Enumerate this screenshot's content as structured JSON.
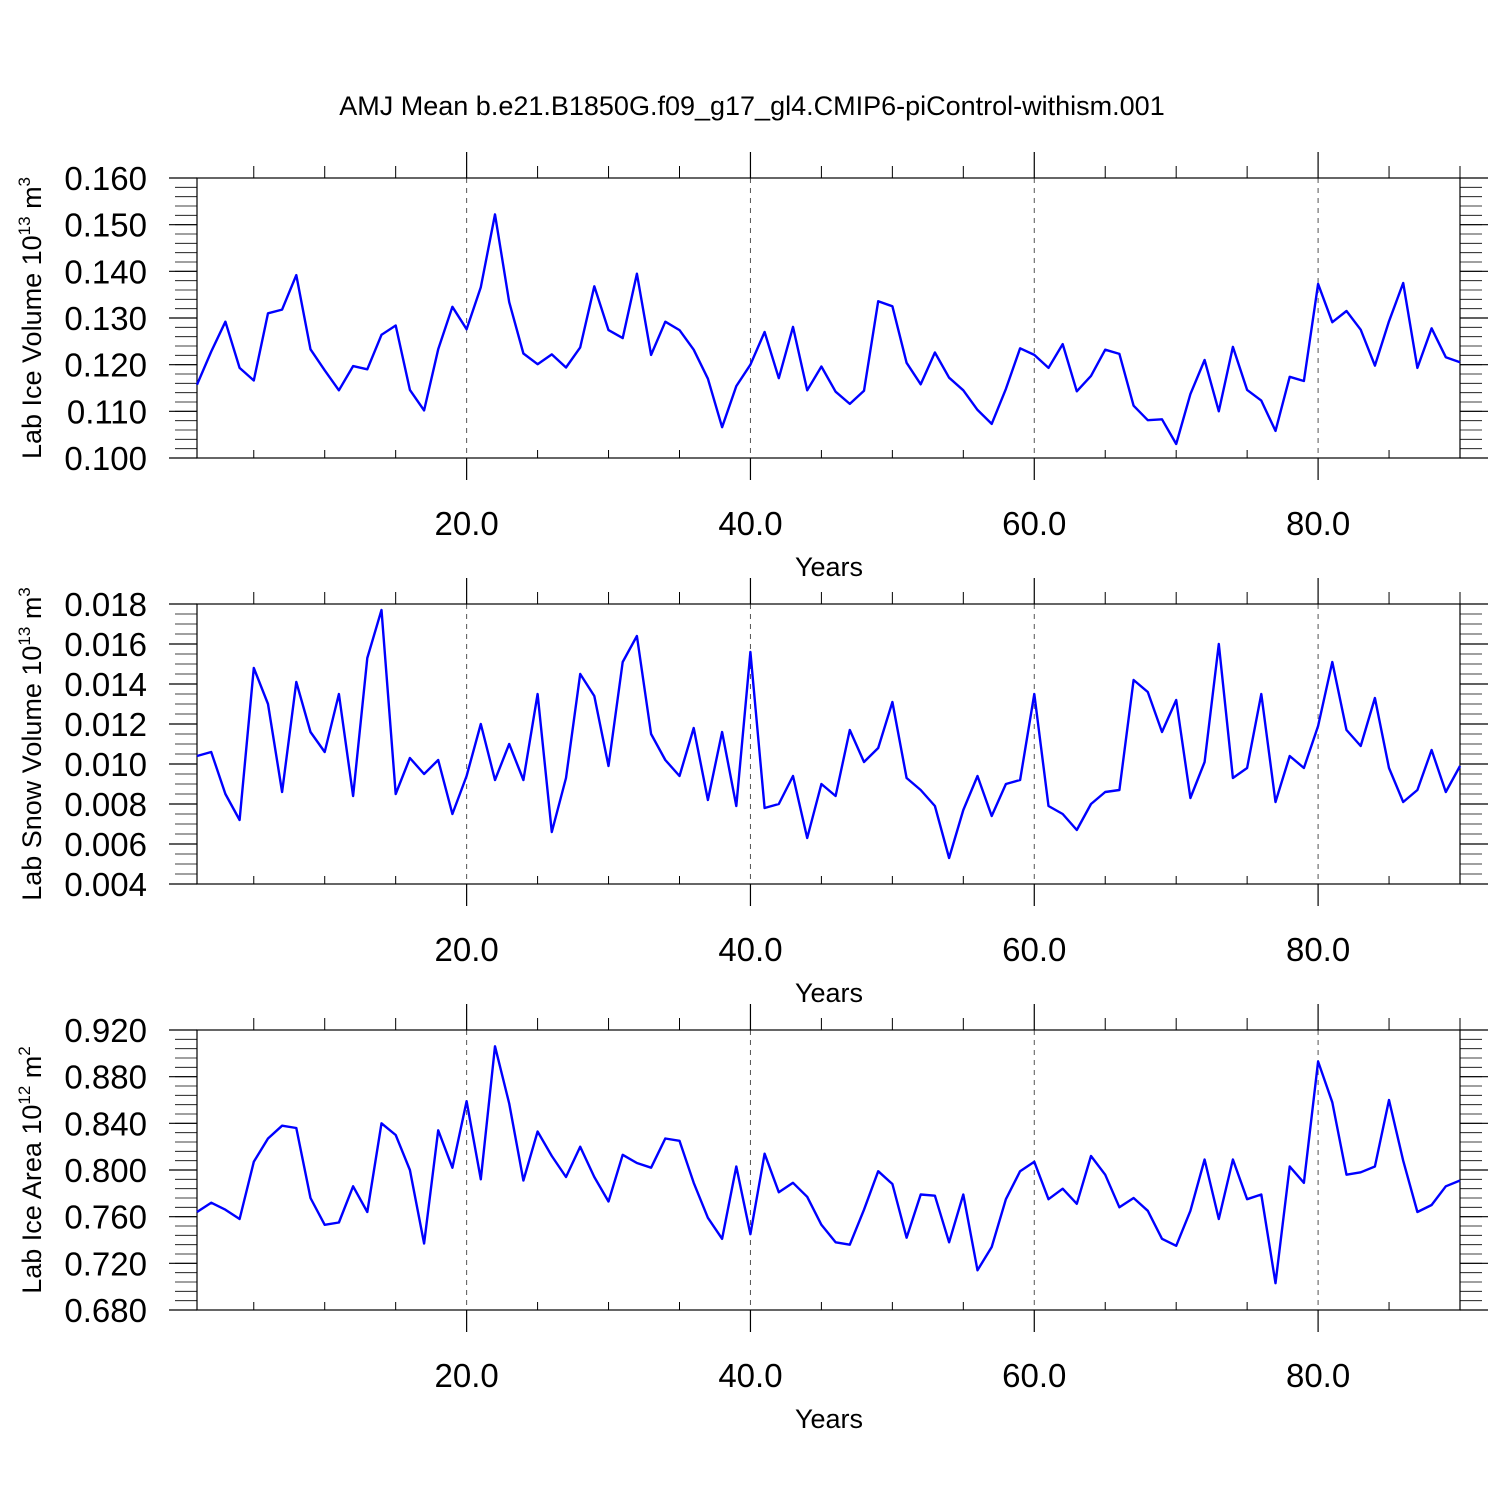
{
  "figure": {
    "title": "AMJ Mean b.e21.B1850G.f09_g17_gl4.CMIP6-piControl-withism.001"
  },
  "chart_data": [
    {
      "type": "line",
      "title": "",
      "xlabel": "Years",
      "ylabel": {
        "text": "Lab Ice Volume 10",
        "sup": "13",
        "unit": " m",
        "unit_sup": "3"
      },
      "xlim": [
        1,
        90
      ],
      "ylim": [
        0.1,
        0.16
      ],
      "xticks": [
        20,
        40,
        60,
        80
      ],
      "xtick_labels": [
        "20.0",
        "40.0",
        "60.0",
        "80.0"
      ],
      "yticks": [
        0.1,
        0.11,
        0.12,
        0.13,
        0.14,
        0.15,
        0.16
      ],
      "ytick_labels": [
        "0.100",
        "0.110",
        "0.120",
        "0.130",
        "0.140",
        "0.150",
        "0.160"
      ],
      "yminor_step": 0.002,
      "grid": "vertical dashed at major x ticks",
      "color": "#0000ff",
      "x": [
        1,
        2,
        3,
        4,
        5,
        6,
        7,
        8,
        9,
        10,
        11,
        12,
        13,
        14,
        15,
        16,
        17,
        18,
        19,
        20,
        21,
        22,
        23,
        24,
        25,
        26,
        27,
        28,
        29,
        30,
        31,
        32,
        33,
        34,
        35,
        36,
        37,
        38,
        39,
        40,
        41,
        42,
        43,
        44,
        45,
        46,
        47,
        48,
        49,
        50,
        51,
        52,
        53,
        54,
        55,
        56,
        57,
        58,
        59,
        60,
        61,
        62,
        63,
        64,
        65,
        66,
        67,
        68,
        69,
        70,
        71,
        72,
        73,
        74,
        75,
        76,
        77,
        78,
        79,
        80,
        81,
        82,
        83,
        84,
        85,
        86,
        87,
        88,
        89,
        90
      ],
      "values": [
        0.1157,
        0.1228,
        0.1292,
        0.1193,
        0.1166,
        0.131,
        0.1318,
        0.1392,
        0.1233,
        0.1188,
        0.1145,
        0.1197,
        0.119,
        0.1264,
        0.1284,
        0.1146,
        0.1102,
        0.1233,
        0.1324,
        0.1276,
        0.1366,
        0.1522,
        0.1334,
        0.1224,
        0.1201,
        0.1222,
        0.1194,
        0.1237,
        0.1368,
        0.1274,
        0.1257,
        0.1395,
        0.1221,
        0.1292,
        0.1274,
        0.1232,
        0.117,
        0.1066,
        0.1154,
        0.12,
        0.127,
        0.1171,
        0.1281,
        0.1145,
        0.1196,
        0.1142,
        0.1116,
        0.1144,
        0.1336,
        0.1325,
        0.1204,
        0.1158,
        0.1226,
        0.1172,
        0.1145,
        0.1103,
        0.1073,
        0.1148,
        0.1235,
        0.1221,
        0.1193,
        0.1244,
        0.1143,
        0.1176,
        0.1232,
        0.1223,
        0.1112,
        0.1081,
        0.1083,
        0.103,
        0.1137,
        0.121,
        0.11,
        0.1238,
        0.1146,
        0.1123,
        0.1058,
        0.1174,
        0.1165,
        0.1373,
        0.1291,
        0.1315,
        0.1275,
        0.1198,
        0.1293,
        0.1375,
        0.1193,
        0.1278,
        0.1216,
        0.1205
      ]
    },
    {
      "type": "line",
      "title": "",
      "xlabel": "Years",
      "ylabel": {
        "text": "Lab Snow Volume 10",
        "sup": "13",
        "unit": " m",
        "unit_sup": "3"
      },
      "xlim": [
        1,
        90
      ],
      "ylim": [
        0.004,
        0.018
      ],
      "xticks": [
        20,
        40,
        60,
        80
      ],
      "xtick_labels": [
        "20.0",
        "40.0",
        "60.0",
        "80.0"
      ],
      "yticks": [
        0.004,
        0.006,
        0.008,
        0.01,
        0.012,
        0.014,
        0.016,
        0.018
      ],
      "ytick_labels": [
        "0.004",
        "0.006",
        "0.008",
        "0.010",
        "0.012",
        "0.014",
        "0.016",
        "0.018"
      ],
      "yminor_step": 0.0005,
      "grid": "vertical dashed at major x ticks",
      "color": "#0000ff",
      "x": [
        1,
        2,
        3,
        4,
        5,
        6,
        7,
        8,
        9,
        10,
        11,
        12,
        13,
        14,
        15,
        16,
        17,
        18,
        19,
        20,
        21,
        22,
        23,
        24,
        25,
        26,
        27,
        28,
        29,
        30,
        31,
        32,
        33,
        34,
        35,
        36,
        37,
        38,
        39,
        40,
        41,
        42,
        43,
        44,
        45,
        46,
        47,
        48,
        49,
        50,
        51,
        52,
        53,
        54,
        55,
        56,
        57,
        58,
        59,
        60,
        61,
        62,
        63,
        64,
        65,
        66,
        67,
        68,
        69,
        70,
        71,
        72,
        73,
        74,
        75,
        76,
        77,
        78,
        79,
        80,
        81,
        82,
        83,
        84,
        85,
        86,
        87,
        88,
        89,
        90
      ],
      "values": [
        0.0104,
        0.0106,
        0.0085,
        0.0072,
        0.0148,
        0.013,
        0.0086,
        0.0141,
        0.0116,
        0.0106,
        0.0135,
        0.0084,
        0.0153,
        0.0177,
        0.0085,
        0.0103,
        0.0095,
        0.0102,
        0.0075,
        0.0094,
        0.012,
        0.0092,
        0.011,
        0.0092,
        0.0135,
        0.0066,
        0.0093,
        0.0145,
        0.0134,
        0.0099,
        0.0151,
        0.0164,
        0.0115,
        0.0102,
        0.0094,
        0.0118,
        0.0082,
        0.0116,
        0.0079,
        0.0156,
        0.0078,
        0.008,
        0.0094,
        0.0063,
        0.009,
        0.0084,
        0.0117,
        0.0101,
        0.0108,
        0.0131,
        0.0093,
        0.0087,
        0.0079,
        0.0053,
        0.0077,
        0.0094,
        0.0074,
        0.009,
        0.0092,
        0.0135,
        0.0079,
        0.0075,
        0.0067,
        0.008,
        0.0086,
        0.0087,
        0.0142,
        0.0136,
        0.0116,
        0.0132,
        0.0083,
        0.0101,
        0.016,
        0.0093,
        0.0098,
        0.0135,
        0.0081,
        0.0104,
        0.0098,
        0.0119,
        0.0151,
        0.0117,
        0.0109,
        0.0133,
        0.0098,
        0.0081,
        0.0087,
        0.0107,
        0.0086,
        0.0099
      ]
    },
    {
      "type": "line",
      "title": "",
      "xlabel": "Years",
      "ylabel": {
        "text": "Lab Ice Area 10",
        "sup": "12",
        "unit": " m",
        "unit_sup": "2"
      },
      "xlim": [
        1,
        90
      ],
      "ylim": [
        0.68,
        0.92
      ],
      "xticks": [
        20,
        40,
        60,
        80
      ],
      "xtick_labels": [
        "20.0",
        "40.0",
        "60.0",
        "80.0"
      ],
      "yticks": [
        0.68,
        0.72,
        0.76,
        0.8,
        0.84,
        0.88,
        0.92
      ],
      "ytick_labels": [
        "0.680",
        "0.720",
        "0.760",
        "0.800",
        "0.840",
        "0.880",
        "0.920"
      ],
      "yminor_step": 0.008,
      "grid": "vertical dashed at major x ticks",
      "color": "#0000ff",
      "x": [
        1,
        2,
        3,
        4,
        5,
        6,
        7,
        8,
        9,
        10,
        11,
        12,
        13,
        14,
        15,
        16,
        17,
        18,
        19,
        20,
        21,
        22,
        23,
        24,
        25,
        26,
        27,
        28,
        29,
        30,
        31,
        32,
        33,
        34,
        35,
        36,
        37,
        38,
        39,
        40,
        41,
        42,
        43,
        44,
        45,
        46,
        47,
        48,
        49,
        50,
        51,
        52,
        53,
        54,
        55,
        56,
        57,
        58,
        59,
        60,
        61,
        62,
        63,
        64,
        65,
        66,
        67,
        68,
        69,
        70,
        71,
        72,
        73,
        74,
        75,
        76,
        77,
        78,
        79,
        80,
        81,
        82,
        83,
        84,
        85,
        86,
        87,
        88,
        89,
        90
      ],
      "values": [
        0.764,
        0.772,
        0.766,
        0.758,
        0.807,
        0.827,
        0.838,
        0.836,
        0.776,
        0.753,
        0.755,
        0.786,
        0.764,
        0.84,
        0.83,
        0.8,
        0.737,
        0.834,
        0.802,
        0.859,
        0.792,
        0.906,
        0.857,
        0.791,
        0.833,
        0.812,
        0.794,
        0.82,
        0.794,
        0.773,
        0.813,
        0.806,
        0.802,
        0.827,
        0.825,
        0.789,
        0.759,
        0.741,
        0.803,
        0.745,
        0.814,
        0.781,
        0.789,
        0.777,
        0.753,
        0.738,
        0.736,
        0.766,
        0.799,
        0.788,
        0.742,
        0.779,
        0.778,
        0.738,
        0.779,
        0.714,
        0.734,
        0.775,
        0.799,
        0.807,
        0.775,
        0.784,
        0.771,
        0.812,
        0.796,
        0.768,
        0.776,
        0.765,
        0.741,
        0.735,
        0.765,
        0.809,
        0.758,
        0.809,
        0.775,
        0.779,
        0.703,
        0.803,
        0.789,
        0.893,
        0.858,
        0.796,
        0.798,
        0.803,
        0.86,
        0.808,
        0.764,
        0.77,
        0.786,
        0.791
      ]
    }
  ]
}
